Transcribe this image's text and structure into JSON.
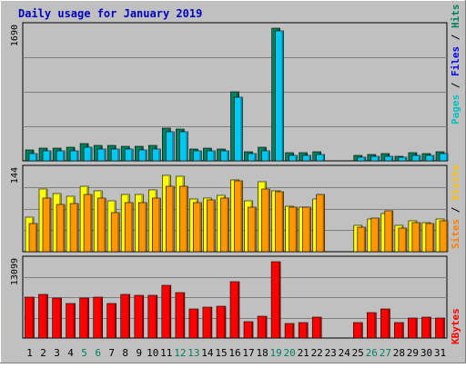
{
  "chart_data": {
    "type": "bar",
    "title": "Daily usage for January 2019",
    "categories": [
      "1",
      "2",
      "3",
      "4",
      "5",
      "6",
      "7",
      "8",
      "9",
      "10",
      "11",
      "12",
      "13",
      "14",
      "15",
      "16",
      "17",
      "18",
      "19",
      "20",
      "21",
      "22",
      "23",
      "24",
      "25",
      "26",
      "27",
      "28",
      "29",
      "30",
      "31"
    ],
    "weekend_days": [
      5,
      6,
      12,
      13,
      19,
      20,
      26,
      27
    ],
    "panels": [
      {
        "id": "top",
        "ymax_label": "1690",
        "ymax": 1690,
        "series": [
          {
            "name": "Hits",
            "color": "#00805c",
            "values": [
              135,
              165,
              165,
              170,
              220,
              200,
              200,
              190,
              185,
              200,
              420,
              400,
              155,
              160,
              150,
              880,
              120,
              175,
              1690,
              100,
              100,
              110,
              0,
              0,
              70,
              80,
              90,
              60,
              100,
              95,
              110
            ]
          },
          {
            "name": "Files",
            "color": "#00c8f0",
            "values": [
              95,
              125,
              125,
              125,
              170,
              150,
              150,
              145,
              140,
              150,
              375,
              370,
              125,
              125,
              125,
              810,
              90,
              125,
              1650,
              75,
              75,
              85,
              0,
              0,
              50,
              60,
              60,
              45,
              70,
              70,
              90
            ]
          }
        ]
      },
      {
        "id": "middle",
        "ymax_label": "144",
        "ymax": 144,
        "series": [
          {
            "name": "Visits",
            "color": "#ffff00",
            "values": [
              62,
              112,
              103,
              98,
              116,
              108,
              91,
              102,
              102,
              110,
              136,
              134,
              94,
              96,
              100,
              128,
              90,
              125,
              109,
              81,
              80,
              94,
              0,
              0,
              47,
              58,
              68,
              47,
              55,
              52,
              59
            ]
          },
          {
            "name": "Sites",
            "color": "#ff9800",
            "values": [
              50,
              96,
              84,
              86,
              102,
              95,
              70,
              88,
              87,
              96,
              116,
              116,
              88,
              92,
              95,
              126,
              80,
              112,
              107,
              80,
              80,
              102,
              0,
              0,
              43,
              60,
              72,
              42,
              51,
              50,
              55
            ]
          }
        ]
      },
      {
        "id": "bottom",
        "ymax_label": "13099",
        "ymax": 13099,
        "series": [
          {
            "name": "KBytes",
            "color": "#ff0000",
            "values": [
              7000,
              7500,
              6800,
              6000,
              6800,
              7000,
              6000,
              7500,
              7400,
              7400,
              9000,
              7800,
              5000,
              5300,
              5400,
              9600,
              2800,
              3700,
              13099,
              2500,
              2700,
              3600,
              0,
              0,
              2600,
              4400,
              5000,
              2700,
              3500,
              3600,
              3400
            ]
          }
        ]
      }
    ],
    "legend_right": {
      "top": [
        "Pages",
        "Files",
        "Hits"
      ],
      "middle": [
        "Sites",
        "Visits"
      ],
      "bottom": [
        "KBytes"
      ]
    },
    "legend_colors": {
      "Pages": "#00c0c0",
      "Files": "#0000ff",
      "Hits": "#00805c",
      "Sites": "#ff8000",
      "Visits": "#ffc000",
      "KBytes": "#ff0000",
      "sep": "#000000"
    },
    "colors": {
      "background": "#c0c0c0",
      "plot": "#c0c0c0",
      "title": "#0000c0",
      "gridline": "#808080",
      "axis_label": "#000000",
      "weekend_label": "#00805c"
    }
  }
}
